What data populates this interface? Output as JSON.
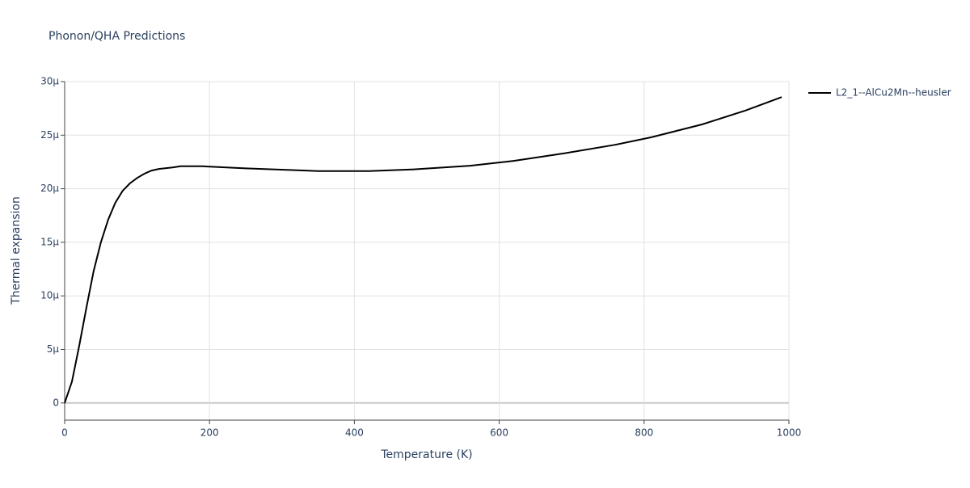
{
  "chart_data": {
    "type": "line",
    "title": "Phonon/QHA Predictions",
    "x_label": "Temperature (K)",
    "y_label": "Thermal expansion",
    "x": [
      0,
      10,
      20,
      30,
      40,
      50,
      60,
      70,
      80,
      90,
      100,
      110,
      120,
      130,
      150,
      160,
      190,
      250,
      350,
      420,
      480,
      560,
      620,
      690,
      760,
      810,
      880,
      940,
      990
    ],
    "series": [
      {
        "name": "L2_1--AlCu2Mn--heusler",
        "color": "#000000",
        "values": [
          0,
          2e-06,
          5.3e-06,
          8.9e-06,
          1.23e-05,
          1.5e-05,
          1.71e-05,
          1.87e-05,
          1.98e-05,
          2.05e-05,
          2.1e-05,
          2.14e-05,
          2.17e-05,
          2.185e-05,
          2.2e-05,
          2.21e-05,
          2.21e-05,
          2.19e-05,
          2.165e-05,
          2.165e-05,
          2.18e-05,
          2.215e-05,
          2.26e-05,
          2.33e-05,
          2.41e-05,
          2.48e-05,
          2.6e-05,
          2.73e-05,
          2.855e-05
        ]
      }
    ],
    "xlim": [
      0,
      1000
    ],
    "xticks": [
      0,
      200,
      400,
      600,
      800,
      1000
    ],
    "ylim": [
      -1.6e-06,
      3e-05
    ],
    "yticks": [
      {
        "value": 0,
        "label": "0"
      },
      {
        "value": 5e-06,
        "label": "5μ"
      },
      {
        "value": 1e-05,
        "label": "10μ"
      },
      {
        "value": 1.5e-05,
        "label": "15μ"
      },
      {
        "value": 2e-05,
        "label": "20μ"
      },
      {
        "value": 2.5e-05,
        "label": "25μ"
      },
      {
        "value": 3e-05,
        "label": "30μ"
      }
    ],
    "grid": true,
    "legend": "right"
  }
}
